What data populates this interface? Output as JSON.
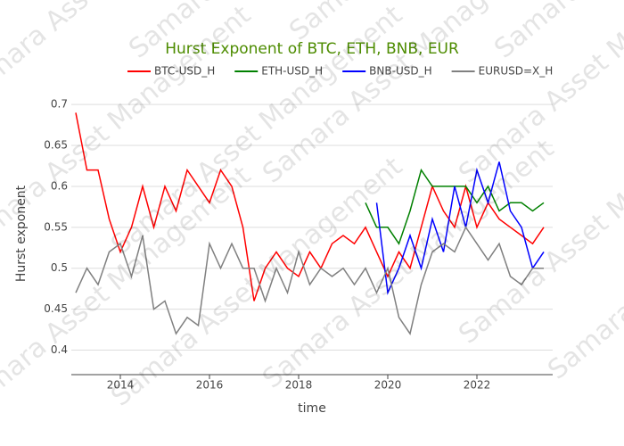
{
  "chart_data": {
    "type": "line",
    "title": "Hurst Exponent of BTC, ETH, BNB, EUR",
    "x_label": "time",
    "y_label": "Hurst exponent",
    "watermark": "Samara Asset Management",
    "x": [
      2013.0,
      2013.25,
      2013.5,
      2013.75,
      2014.0,
      2014.25,
      2014.5,
      2014.75,
      2015.0,
      2015.25,
      2015.5,
      2015.75,
      2016.0,
      2016.25,
      2016.5,
      2016.75,
      2017.0,
      2017.25,
      2017.5,
      2017.75,
      2018.0,
      2018.25,
      2018.5,
      2018.75,
      2019.0,
      2019.25,
      2019.5,
      2019.75,
      2020.0,
      2020.25,
      2020.5,
      2020.75,
      2021.0,
      2021.25,
      2021.5,
      2021.75,
      2022.0,
      2022.25,
      2022.5,
      2022.75,
      2023.0,
      2023.25,
      2023.5
    ],
    "series": [
      {
        "name": "BTC-USD_H",
        "color": "#ff0000",
        "values": [
          0.69,
          0.62,
          0.62,
          0.56,
          0.52,
          0.55,
          0.6,
          0.55,
          0.6,
          0.57,
          0.62,
          0.6,
          0.58,
          0.62,
          0.6,
          0.55,
          0.46,
          0.5,
          0.52,
          0.5,
          0.49,
          0.52,
          0.5,
          0.53,
          0.54,
          0.53,
          0.55,
          0.52,
          0.49,
          0.52,
          0.5,
          0.55,
          0.6,
          0.57,
          0.55,
          0.6,
          0.55,
          0.58,
          0.56,
          0.55,
          0.54,
          0.53,
          0.55
        ]
      },
      {
        "name": "ETH-USD_H",
        "color": "#008000",
        "values": [
          null,
          null,
          null,
          null,
          null,
          null,
          null,
          null,
          null,
          null,
          null,
          null,
          null,
          null,
          null,
          null,
          null,
          null,
          null,
          null,
          null,
          null,
          null,
          null,
          null,
          null,
          0.58,
          0.55,
          0.55,
          0.53,
          0.57,
          0.62,
          0.6,
          0.6,
          0.6,
          0.6,
          0.58,
          0.6,
          0.57,
          0.58,
          0.58,
          0.57,
          0.58
        ]
      },
      {
        "name": "BNB-USD_H",
        "color": "#0000ff",
        "values": [
          null,
          null,
          null,
          null,
          null,
          null,
          null,
          null,
          null,
          null,
          null,
          null,
          null,
          null,
          null,
          null,
          null,
          null,
          null,
          null,
          null,
          null,
          null,
          null,
          null,
          null,
          null,
          0.58,
          0.47,
          0.5,
          0.54,
          0.5,
          0.56,
          0.52,
          0.6,
          0.55,
          0.62,
          0.58,
          0.63,
          0.57,
          0.55,
          0.5,
          0.52
        ]
      },
      {
        "name": "EURUSD=X_H",
        "color": "#808080",
        "values": [
          0.47,
          0.5,
          0.48,
          0.52,
          0.53,
          0.49,
          0.54,
          0.45,
          0.46,
          0.42,
          0.44,
          0.43,
          0.53,
          0.5,
          0.53,
          0.5,
          0.5,
          0.46,
          0.5,
          0.47,
          0.52,
          0.48,
          0.5,
          0.49,
          0.5,
          0.48,
          0.5,
          0.47,
          0.5,
          0.44,
          0.42,
          0.48,
          0.52,
          0.53,
          0.52,
          0.55,
          0.53,
          0.51,
          0.53,
          0.49,
          0.48,
          0.5,
          0.5
        ]
      }
    ],
    "xlim": [
      2012.9,
      2023.7
    ],
    "xticks": [
      2014,
      2016,
      2018,
      2020,
      2022
    ],
    "ylim": [
      0.37,
      0.71
    ],
    "yticks": [
      0.4,
      0.45,
      0.5,
      0.55,
      0.6,
      0.65,
      0.7
    ],
    "grid": true
  }
}
